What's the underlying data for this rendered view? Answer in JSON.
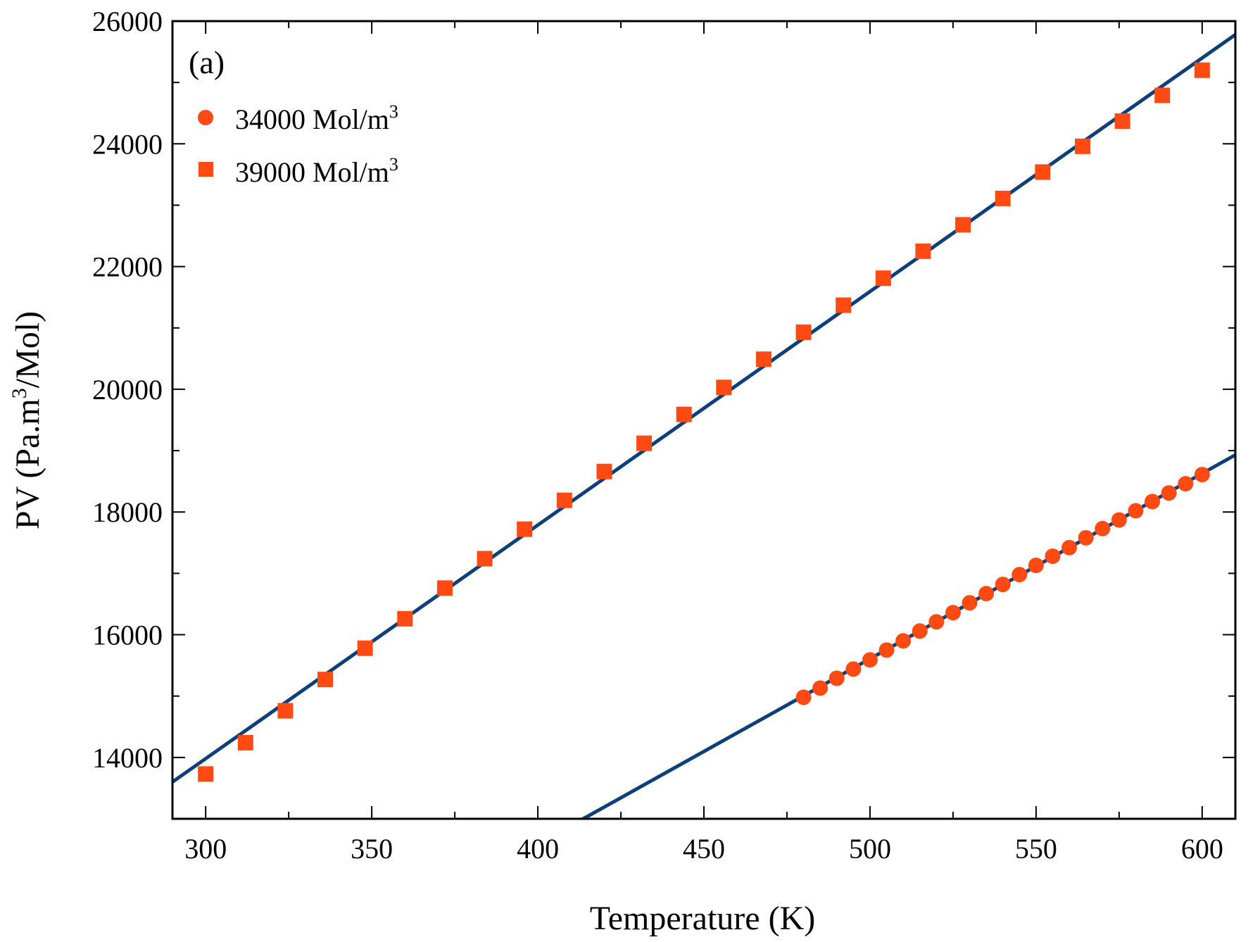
{
  "chart_data": {
    "type": "scatter",
    "title": "",
    "panel_label": "(a)",
    "xlabel": "Temperature (K)",
    "ylabel_parts": [
      "PV (Pa.m",
      "3",
      "/Mol)"
    ],
    "xlim": [
      290,
      610
    ],
    "ylim": [
      13000,
      26000
    ],
    "x_ticks": [
      300,
      350,
      400,
      450,
      500,
      550,
      600
    ],
    "y_ticks": [
      14000,
      16000,
      18000,
      20000,
      22000,
      24000,
      26000
    ],
    "x_minor_step": 25,
    "y_minor_step": 1000,
    "grid": false,
    "legend_position": "top-left",
    "colors": {
      "marker": "#ff4a14",
      "fit_line": "#0d3f7a",
      "axis": "#000000"
    },
    "series": [
      {
        "name": "34000 Mol/m3",
        "legend_main": "34000 Mol/m",
        "legend_sup": "3",
        "marker": "circle",
        "x": [
          480,
          485,
          490,
          495,
          500,
          505,
          510,
          515,
          520,
          525,
          530,
          535,
          540,
          545,
          550,
          555,
          560,
          565,
          570,
          575,
          580,
          585,
          590,
          595,
          600
        ],
        "y": [
          14980,
          15130,
          15290,
          15440,
          15590,
          15750,
          15900,
          16060,
          16210,
          16360,
          16520,
          16670,
          16820,
          16980,
          17130,
          17280,
          17420,
          17580,
          17730,
          17870,
          18020,
          18170,
          18310,
          18460,
          18610
        ],
        "fit": {
          "x": [
            413,
            610
          ],
          "y": [
            12980,
            18930
          ]
        }
      },
      {
        "name": "39000 Mol/m3",
        "legend_main": "39000 Mol/m",
        "legend_sup": "3",
        "marker": "square",
        "x": [
          300,
          312,
          324,
          336,
          348,
          360,
          372,
          384,
          396,
          408,
          420,
          432,
          444,
          456,
          468,
          480,
          492,
          504,
          516,
          528,
          540,
          552,
          564,
          576,
          588,
          600
        ],
        "y": [
          13730,
          14240,
          14760,
          15270,
          15780,
          16260,
          16760,
          17240,
          17720,
          18190,
          18660,
          19120,
          19590,
          20030,
          20490,
          20930,
          21370,
          21810,
          22250,
          22680,
          23110,
          23540,
          23960,
          24370,
          24790,
          25200
        ],
        "fit": {
          "x": [
            290,
            610
          ],
          "y": [
            13600,
            25780
          ]
        }
      }
    ]
  }
}
